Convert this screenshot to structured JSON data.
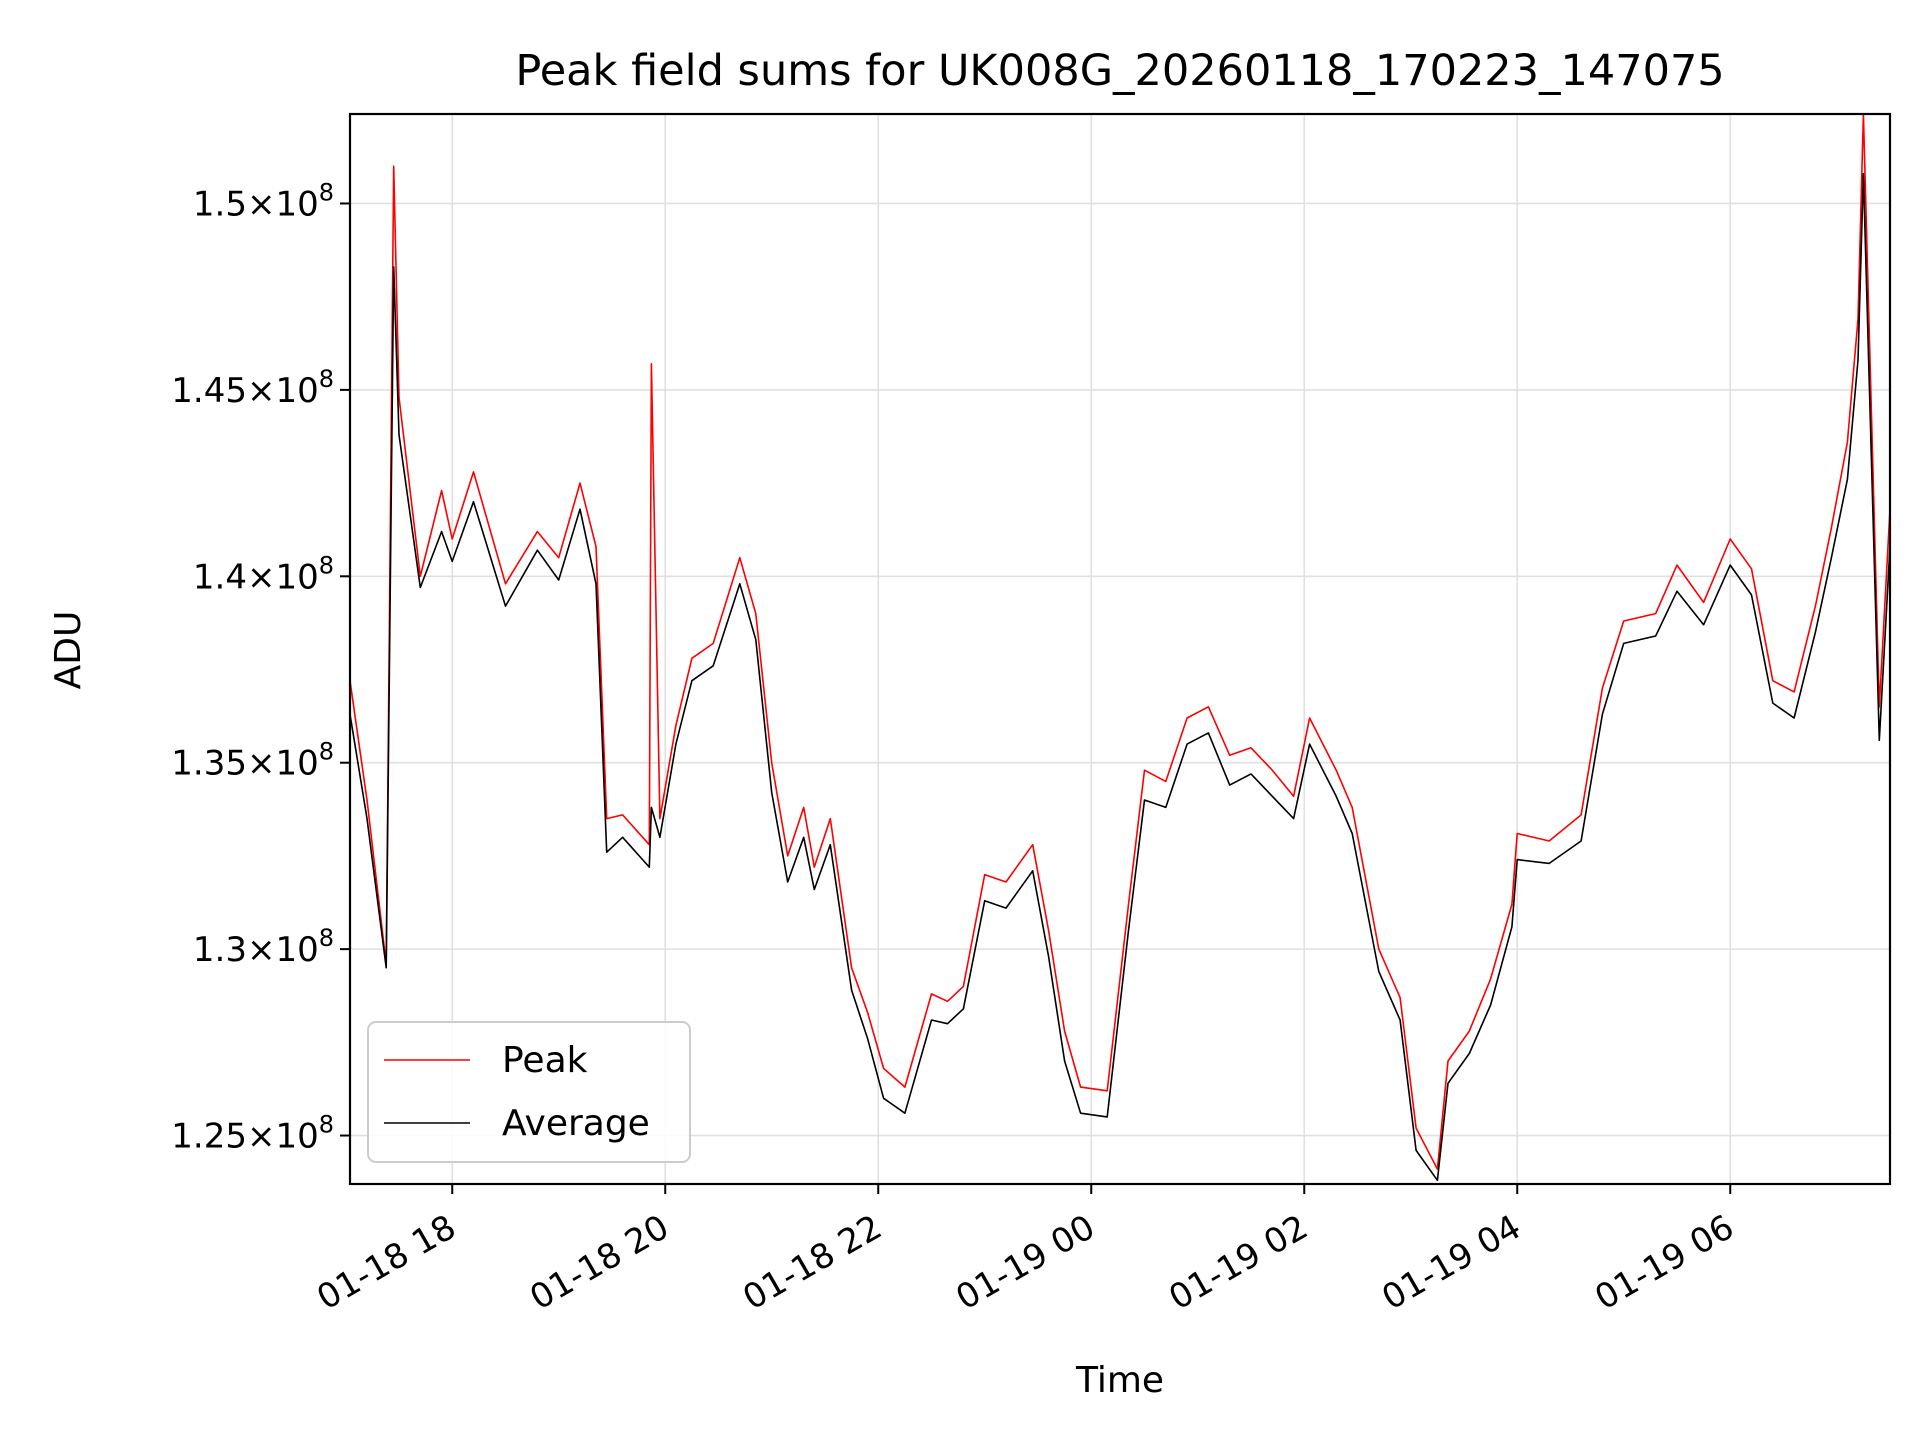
{
  "chart_data": {
    "type": "line",
    "title": "Peak field sums for UK008G_20260118_170223_147075",
    "xlabel": "Time",
    "ylabel": "ADU",
    "x_range_hours": [
      17.04,
      31.5
    ],
    "ylim": [
      123700000,
      152400000
    ],
    "x_tick_hours": [
      18,
      20,
      22,
      24,
      26,
      28,
      30
    ],
    "x_tick_labels": [
      "01-18 18",
      "01-18 20",
      "01-18 22",
      "01-19 00",
      "01-19 02",
      "01-19 04",
      "01-19 06"
    ],
    "y_tick_values": [
      125000000,
      130000000,
      135000000,
      140000000,
      145000000,
      150000000
    ],
    "y_tick_labels": [
      {
        "mantissa": "1.25",
        "exponent": "8"
      },
      {
        "mantissa": "1.3",
        "exponent": "8"
      },
      {
        "mantissa": "1.35",
        "exponent": "8"
      },
      {
        "mantissa": "1.4",
        "exponent": "8"
      },
      {
        "mantissa": "1.45",
        "exponent": "8"
      },
      {
        "mantissa": "1.5",
        "exponent": "8"
      }
    ],
    "tick_times_symbol": "×",
    "tick_base": "10",
    "grid": true,
    "legend_position": "bottom-left",
    "series": [
      {
        "name": "Peak",
        "color": "#ff0000",
        "t": [
          17.04,
          17.2,
          17.38,
          17.45,
          17.5,
          17.7,
          17.9,
          18.0,
          18.2,
          18.5,
          18.8,
          19.0,
          19.2,
          19.35,
          19.45,
          19.6,
          19.85,
          19.87,
          19.95,
          20.1,
          20.25,
          20.45,
          20.7,
          20.85,
          21.0,
          21.15,
          21.3,
          21.4,
          21.55,
          21.75,
          21.9,
          22.05,
          22.25,
          22.5,
          22.65,
          22.8,
          23.0,
          23.2,
          23.45,
          23.6,
          23.75,
          23.9,
          24.15,
          24.35,
          24.5,
          24.7,
          24.9,
          25.1,
          25.3,
          25.5,
          25.7,
          25.9,
          26.05,
          26.3,
          26.45,
          26.7,
          26.9,
          27.05,
          27.25,
          27.35,
          27.55,
          27.75,
          27.95,
          28.0,
          28.3,
          28.6,
          28.8,
          29.0,
          29.3,
          29.5,
          29.75,
          30.0,
          30.2,
          30.4,
          30.6,
          30.8,
          30.95,
          31.1,
          31.2,
          31.25,
          31.4,
          31.5
        ],
        "values": [
          137200000,
          134000000,
          129600000,
          151000000,
          144800000,
          140000000,
          142300000,
          141000000,
          142800000,
          139800000,
          141200000,
          140500000,
          142500000,
          140800000,
          133500000,
          133600000,
          132800000,
          145700000,
          133500000,
          136000000,
          137800000,
          138200000,
          140500000,
          139000000,
          135000000,
          132500000,
          133800000,
          132200000,
          133500000,
          129500000,
          128300000,
          126800000,
          126300000,
          128800000,
          128600000,
          129000000,
          132000000,
          131800000,
          132800000,
          130500000,
          127800000,
          126300000,
          126200000,
          131200000,
          134800000,
          134500000,
          136200000,
          136500000,
          135200000,
          135400000,
          134800000,
          134100000,
          136200000,
          134800000,
          133800000,
          130000000,
          128700000,
          125200000,
          124100000,
          127000000,
          127800000,
          129200000,
          131200000,
          133100000,
          132900000,
          133600000,
          137000000,
          138800000,
          139000000,
          140300000,
          139300000,
          141000000,
          140200000,
          137200000,
          136900000,
          139200000,
          141300000,
          143600000,
          146900000,
          152400000,
          136500000,
          141800000
        ]
      },
      {
        "name": "Average",
        "color": "#000000",
        "t": [
          17.04,
          17.2,
          17.38,
          17.45,
          17.5,
          17.7,
          17.9,
          18.0,
          18.2,
          18.5,
          18.8,
          19.0,
          19.2,
          19.35,
          19.45,
          19.6,
          19.85,
          19.87,
          19.95,
          20.1,
          20.25,
          20.45,
          20.7,
          20.85,
          21.0,
          21.15,
          21.3,
          21.4,
          21.55,
          21.75,
          21.9,
          22.05,
          22.25,
          22.5,
          22.65,
          22.8,
          23.0,
          23.2,
          23.45,
          23.6,
          23.75,
          23.9,
          24.15,
          24.35,
          24.5,
          24.7,
          24.9,
          25.1,
          25.3,
          25.5,
          25.7,
          25.9,
          26.05,
          26.3,
          26.45,
          26.7,
          26.9,
          27.05,
          27.25,
          27.35,
          27.55,
          27.75,
          27.95,
          28.0,
          28.3,
          28.6,
          28.8,
          29.0,
          29.3,
          29.5,
          29.75,
          30.0,
          30.2,
          30.4,
          30.6,
          30.8,
          30.95,
          31.1,
          31.2,
          31.25,
          31.4,
          31.5
        ],
        "values": [
          136300000,
          133500000,
          129500000,
          148300000,
          143800000,
          139700000,
          141200000,
          140400000,
          142000000,
          139200000,
          140700000,
          139900000,
          141800000,
          139800000,
          132600000,
          133000000,
          132200000,
          133800000,
          133000000,
          135500000,
          137200000,
          137600000,
          139800000,
          138300000,
          134200000,
          131800000,
          133000000,
          131600000,
          132800000,
          128900000,
          127600000,
          126000000,
          125600000,
          128100000,
          128000000,
          128400000,
          131300000,
          131100000,
          132100000,
          129800000,
          127000000,
          125600000,
          125500000,
          130500000,
          134000000,
          133800000,
          135500000,
          135800000,
          134400000,
          134700000,
          134100000,
          133500000,
          135500000,
          134100000,
          133100000,
          129400000,
          128100000,
          124600000,
          123800000,
          126400000,
          127200000,
          128500000,
          130600000,
          132400000,
          132300000,
          132900000,
          136300000,
          138200000,
          138400000,
          139600000,
          138700000,
          140300000,
          139500000,
          136600000,
          136200000,
          138500000,
          140500000,
          142600000,
          145800000,
          150800000,
          135600000,
          140800000
        ]
      }
    ]
  }
}
